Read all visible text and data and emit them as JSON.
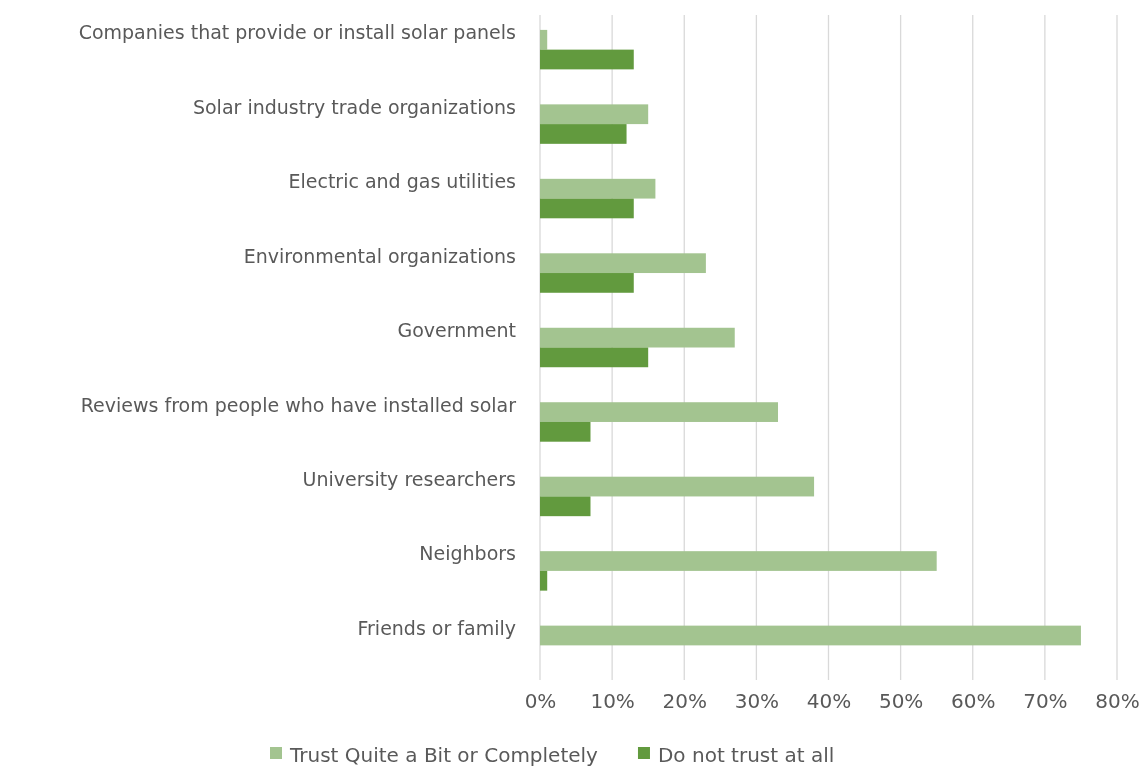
{
  "chart_data": {
    "type": "bar",
    "orientation": "horizontal",
    "categories": [
      "Companies that provide or install solar panels",
      "Solar industry trade organizations",
      "Electric and gas utilities",
      "Environmental organizations",
      "Government",
      "Reviews from people who have installed solar",
      "University researchers",
      "Neighbors",
      "Friends or family"
    ],
    "series": [
      {
        "name": "Trust Quite a Bit or Completely",
        "color": "#a3c490",
        "values": [
          1,
          15,
          16,
          23,
          27,
          33,
          38,
          55,
          75
        ]
      },
      {
        "name": "Do not trust at all",
        "color": "#629a3e",
        "values": [
          13,
          12,
          13,
          13,
          15,
          7,
          7,
          1,
          0
        ]
      }
    ],
    "xlim": [
      0,
      80
    ],
    "xticks": [
      {
        "value": 0,
        "label": "0%"
      },
      {
        "value": 10,
        "label": "10%"
      },
      {
        "value": 20,
        "label": "20%"
      },
      {
        "value": 30,
        "label": "30%"
      },
      {
        "value": 40,
        "label": "40%"
      },
      {
        "value": 50,
        "label": "50%"
      },
      {
        "value": 60,
        "label": "60%"
      },
      {
        "value": 70,
        "label": "70%"
      },
      {
        "value": 80,
        "label": "80%"
      }
    ],
    "grid": "x",
    "legend": "bottom"
  }
}
